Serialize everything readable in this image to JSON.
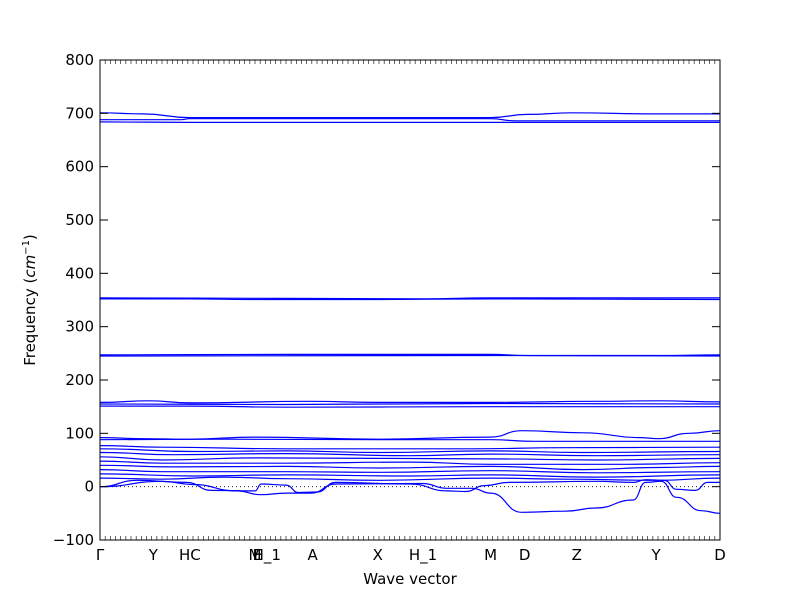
{
  "chart_data": {
    "type": "line",
    "xlabel": "Wave vector",
    "ylabel": "Frequency ($cm^{-1}$)",
    "ylabel_main": "Frequency (",
    "ylabel_unit_base": "cm",
    "ylabel_unit_sup": "−1",
    "ylabel_close": ")",
    "ylim": [
      -100,
      800
    ],
    "y_ticks": [
      -100,
      0,
      100,
      200,
      300,
      400,
      500,
      600,
      700,
      800
    ],
    "grid": false,
    "zero_reference_line": true,
    "high_symmetry_points": [
      {
        "label": "Γ",
        "x": 0.0
      },
      {
        "label": "Y",
        "x": 0.086
      },
      {
        "label": "HC",
        "x": 0.145
      },
      {
        "label": "E",
        "x": 0.255
      },
      {
        "label": "M",
        "x": 0.25
      },
      {
        "label": "H_1",
        "x": 0.269
      },
      {
        "label": "A",
        "x": 0.343
      },
      {
        "label": "X",
        "x": 0.448
      },
      {
        "label": "H_1",
        "x": 0.521
      },
      {
        "label": "M",
        "x": 0.63
      },
      {
        "label": "D",
        "x": 0.685
      },
      {
        "label": "Z",
        "x": 0.769
      },
      {
        "label": "Y",
        "x": 0.897
      },
      {
        "label": "D",
        "x": 1.0
      }
    ],
    "series": [
      {
        "values": [
          [
            0,
            701
          ],
          [
            0.07,
            699
          ],
          [
            0.145,
            692
          ],
          [
            0.34,
            692
          ],
          [
            0.63,
            692
          ],
          [
            0.69,
            698
          ],
          [
            0.76,
            701
          ],
          [
            0.9,
            699
          ],
          [
            1.0,
            699
          ]
        ]
      },
      {
        "values": [
          [
            0,
            688
          ],
          [
            0.13,
            688
          ],
          [
            0.145,
            690
          ],
          [
            0.63,
            690
          ],
          [
            0.67,
            686
          ],
          [
            0.8,
            686
          ],
          [
            1.0,
            686
          ]
        ]
      },
      {
        "values": [
          [
            0,
            684
          ],
          [
            0.145,
            683
          ],
          [
            0.4,
            683
          ],
          [
            0.63,
            683
          ],
          [
            0.69,
            683
          ],
          [
            1.0,
            683
          ]
        ]
      },
      {
        "values": [
          [
            0,
            354
          ],
          [
            0.3,
            353
          ],
          [
            0.52,
            352
          ],
          [
            0.63,
            354
          ],
          [
            1.0,
            354
          ]
        ]
      },
      {
        "values": [
          [
            0,
            352
          ],
          [
            0.145,
            352
          ],
          [
            0.24,
            351
          ],
          [
            0.45,
            351
          ],
          [
            0.63,
            352
          ],
          [
            1.0,
            351
          ]
        ]
      },
      {
        "values": [
          [
            0,
            247
          ],
          [
            0.3,
            248
          ],
          [
            0.63,
            248
          ],
          [
            0.69,
            246
          ],
          [
            0.9,
            246
          ],
          [
            1.0,
            247
          ]
        ]
      },
      {
        "values": [
          [
            0,
            245
          ],
          [
            0.63,
            246
          ],
          [
            1.0,
            245
          ]
        ]
      },
      {
        "values": [
          [
            0,
            158
          ],
          [
            0.08,
            161
          ],
          [
            0.145,
            157
          ],
          [
            0.34,
            160
          ],
          [
            0.45,
            158
          ],
          [
            0.63,
            158
          ],
          [
            0.8,
            160
          ],
          [
            0.9,
            161
          ],
          [
            1.0,
            159
          ]
        ]
      },
      {
        "values": [
          [
            0,
            155
          ],
          [
            0.3,
            154
          ],
          [
            0.63,
            156
          ],
          [
            1.0,
            155
          ]
        ]
      },
      {
        "values": [
          [
            0,
            151
          ],
          [
            0.145,
            151
          ],
          [
            0.3,
            149
          ],
          [
            0.63,
            150
          ],
          [
            0.7,
            150
          ],
          [
            0.9,
            150
          ],
          [
            1.0,
            150
          ]
        ]
      },
      {
        "values": [
          [
            0,
            92
          ],
          [
            0.07,
            90
          ],
          [
            0.145,
            89
          ],
          [
            0.25,
            93
          ],
          [
            0.45,
            89
          ],
          [
            0.63,
            93
          ],
          [
            0.68,
            105
          ],
          [
            0.78,
            101
          ],
          [
            0.87,
            92
          ],
          [
            0.9,
            90
          ],
          [
            0.95,
            100
          ],
          [
            1.0,
            105
          ]
        ]
      },
      {
        "values": [
          [
            0,
            88
          ],
          [
            0.2,
            89
          ],
          [
            0.45,
            88
          ],
          [
            0.63,
            88
          ],
          [
            0.7,
            85
          ],
          [
            1.0,
            85
          ]
        ]
      },
      {
        "values": [
          [
            0,
            77
          ],
          [
            0.1,
            74
          ],
          [
            0.3,
            71
          ],
          [
            0.6,
            71
          ],
          [
            0.75,
            73
          ],
          [
            1.0,
            74
          ]
        ]
      },
      {
        "values": [
          [
            0,
            71
          ],
          [
            0.15,
            66
          ],
          [
            0.3,
            67
          ],
          [
            0.45,
            64
          ],
          [
            0.63,
            67
          ],
          [
            0.78,
            64
          ],
          [
            1.0,
            66
          ]
        ]
      },
      {
        "values": [
          [
            0,
            64
          ],
          [
            0.12,
            60
          ],
          [
            0.3,
            62
          ],
          [
            0.5,
            58
          ],
          [
            0.63,
            61
          ],
          [
            0.8,
            58
          ],
          [
            1.0,
            60
          ]
        ]
      },
      {
        "values": [
          [
            0,
            56
          ],
          [
            0.1,
            50
          ],
          [
            0.25,
            54
          ],
          [
            0.45,
            53
          ],
          [
            0.63,
            52
          ],
          [
            0.8,
            50
          ],
          [
            1.0,
            53
          ]
        ]
      },
      {
        "values": [
          [
            0,
            48
          ],
          [
            0.1,
            44
          ],
          [
            0.3,
            44
          ],
          [
            0.5,
            46
          ],
          [
            0.63,
            42
          ],
          [
            0.85,
            42
          ],
          [
            1.0,
            45
          ]
        ]
      },
      {
        "values": [
          [
            0,
            40
          ],
          [
            0.12,
            37
          ],
          [
            0.3,
            38
          ],
          [
            0.45,
            35
          ],
          [
            0.63,
            38
          ],
          [
            0.78,
            32
          ],
          [
            0.9,
            36
          ],
          [
            1.0,
            38
          ]
        ]
      },
      {
        "values": [
          [
            0,
            32
          ],
          [
            0.1,
            28
          ],
          [
            0.3,
            28
          ],
          [
            0.45,
            27
          ],
          [
            0.63,
            30
          ],
          [
            0.8,
            26
          ],
          [
            1.0,
            28
          ]
        ]
      },
      {
        "values": [
          [
            0,
            24
          ],
          [
            0.15,
            20
          ],
          [
            0.3,
            22
          ],
          [
            0.5,
            20
          ],
          [
            0.63,
            22
          ],
          [
            0.8,
            18
          ],
          [
            1.0,
            22
          ]
        ]
      },
      {
        "values": [
          [
            0,
            16
          ],
          [
            0.1,
            14
          ],
          [
            0.2,
            18
          ],
          [
            0.3,
            15
          ],
          [
            0.45,
            12
          ],
          [
            0.63,
            16
          ],
          [
            0.75,
            14
          ],
          [
            0.9,
            12
          ],
          [
            1.0,
            16
          ]
        ]
      },
      {
        "values": [
          [
            0,
            0
          ],
          [
            0.06,
            12
          ],
          [
            0.14,
            8
          ],
          [
            0.18,
            -7
          ],
          [
            0.25,
            -8
          ],
          [
            0.26,
            5
          ],
          [
            0.3,
            3
          ],
          [
            0.32,
            -11
          ],
          [
            0.35,
            -10
          ],
          [
            0.38,
            8
          ],
          [
            0.5,
            5
          ],
          [
            0.56,
            -8
          ],
          [
            0.59,
            -9
          ],
          [
            0.62,
            2
          ],
          [
            0.66,
            8
          ],
          [
            0.8,
            10
          ],
          [
            0.86,
            8
          ],
          [
            0.88,
            13
          ],
          [
            0.91,
            12
          ],
          [
            0.93,
            -5
          ],
          [
            0.96,
            -7
          ],
          [
            0.98,
            8
          ],
          [
            1.0,
            8
          ]
        ]
      },
      {
        "values": [
          [
            0,
            0
          ],
          [
            0.1,
            10
          ],
          [
            0.15,
            4
          ],
          [
            0.22,
            -8
          ],
          [
            0.26,
            -15
          ],
          [
            0.3,
            -12
          ],
          [
            0.34,
            -12
          ],
          [
            0.38,
            5
          ],
          [
            0.52,
            6
          ],
          [
            0.56,
            -3
          ],
          [
            0.6,
            -3
          ],
          [
            0.63,
            -12
          ],
          [
            0.68,
            -48
          ],
          [
            0.75,
            -46
          ],
          [
            0.8,
            -40
          ],
          [
            0.86,
            -25
          ],
          [
            0.88,
            8
          ],
          [
            0.905,
            10
          ],
          [
            0.93,
            -20
          ],
          [
            0.97,
            -45
          ],
          [
            1.0,
            -50
          ]
        ]
      }
    ]
  }
}
